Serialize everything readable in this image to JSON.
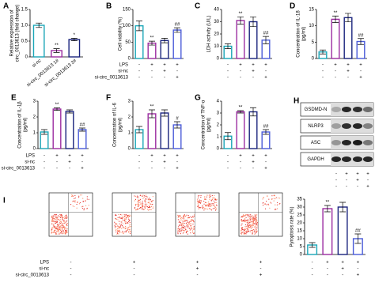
{
  "chart_data": [
    {
      "type": "bar",
      "label": "A",
      "ylabel": [
        "Relative expression of",
        "circ_0013613 (fold change)"
      ],
      "categories": [
        "si-nc",
        "si-circ_0013613 1#",
        "si-circ_0013613 2#"
      ],
      "values": [
        1.0,
        0.2,
        0.55
      ],
      "errors": [
        0.07,
        0.06,
        0.04
      ],
      "colors": [
        "#1aa6b7",
        "#9b2ca0",
        "#1a237e"
      ],
      "annotations": [
        null,
        "**",
        "*"
      ],
      "ylim": [
        0,
        1.5
      ],
      "yticks": [
        0,
        0.5,
        {
          "value": 1,
          "label": "1.0"
        },
        1.5
      ]
    },
    {
      "type": "bar",
      "label": "B",
      "ylabel": [
        "Cell viability (%)"
      ],
      "categories": [
        null,
        null,
        null,
        null
      ],
      "values": [
        100,
        47,
        55,
        87
      ],
      "errors": [
        15,
        6,
        7,
        7
      ],
      "colors": [
        "#1aa6b7",
        "#9b2ca0",
        "#1a237e",
        "#4a5bd8"
      ],
      "annotations": [
        null,
        "**",
        null,
        "##"
      ],
      "ylim": [
        0,
        150
      ],
      "yticks": [
        0,
        50,
        100,
        150
      ]
    },
    {
      "type": "bar",
      "label": "C",
      "ylabel": [
        "LDH activity (U/L)"
      ],
      "categories": [
        null,
        null,
        null,
        null
      ],
      "values": [
        10,
        31,
        30,
        15
      ],
      "errors": [
        2,
        3,
        4,
        3
      ],
      "colors": [
        "#1aa6b7",
        "#9b2ca0",
        "#1a237e",
        "#4a5bd8"
      ],
      "annotations": [
        null,
        "**",
        null,
        "##"
      ],
      "ylim": [
        0,
        40
      ],
      "yticks": [
        0,
        10,
        20,
        30,
        40
      ]
    },
    {
      "type": "bar",
      "label": "D",
      "ylabel": [
        "Concentration of IL-18",
        "(pg/ml)"
      ],
      "categories": [
        null,
        null,
        null,
        null
      ],
      "values": [
        2,
        12,
        12.5,
        5.2
      ],
      "errors": [
        0.6,
        1,
        1.3,
        0.9
      ],
      "colors": [
        "#1aa6b7",
        "#9b2ca0",
        "#1a237e",
        "#4a5bd8"
      ],
      "annotations": [
        null,
        "**",
        null,
        "##"
      ],
      "ylim": [
        0,
        15
      ],
      "yticks": [
        0,
        5,
        10,
        15
      ]
    },
    {
      "type": "bar",
      "label": "E",
      "ylabel": [
        "Concentration of IL-1β",
        "(pg/ml)"
      ],
      "categories": [
        null,
        null,
        null,
        null
      ],
      "values": [
        1.05,
        2.5,
        2.35,
        1.2
      ],
      "errors": [
        0.15,
        0.08,
        0.1,
        0.1
      ],
      "colors": [
        "#1aa6b7",
        "#9b2ca0",
        "#1a237e",
        "#4a5bd8"
      ],
      "annotations": [
        null,
        "**",
        null,
        "##"
      ],
      "ylim": [
        0,
        3
      ],
      "yticks": [
        0,
        1,
        2,
        3
      ]
    },
    {
      "type": "bar",
      "label": "F",
      "ylabel": [
        "Concentration of IL-6",
        "(pg/ml)"
      ],
      "categories": [
        null,
        null,
        null,
        null
      ],
      "values": [
        1.2,
        2.2,
        2.25,
        1.5
      ],
      "errors": [
        0.2,
        0.25,
        0.2,
        0.2
      ],
      "colors": [
        "#1aa6b7",
        "#9b2ca0",
        "#1a237e",
        "#4a5bd8"
      ],
      "annotations": [
        null,
        "**",
        null,
        "#"
      ],
      "ylim": [
        0,
        3
      ],
      "yticks": [
        0,
        1,
        2,
        3
      ]
    },
    {
      "type": "bar",
      "label": "G",
      "ylabel": [
        "Concentration of TNF-α",
        "(pg/ml)"
      ],
      "categories": [
        null,
        null,
        null,
        null
      ],
      "values": [
        1.05,
        3.1,
        3.1,
        1.4
      ],
      "errors": [
        0.3,
        0.1,
        0.35,
        0.2
      ],
      "colors": [
        "#1aa6b7",
        "#9b2ca0",
        "#1a237e",
        "#4a5bd8"
      ],
      "annotations": [
        null,
        "**",
        null,
        "##"
      ],
      "ylim": [
        0,
        4
      ],
      "yticks": [
        0,
        1,
        2,
        3,
        4
      ]
    },
    {
      "type": "bar",
      "label": null,
      "ylabel": [
        "Pyroptosis rate (%)"
      ],
      "categories": [
        null,
        null,
        null,
        null
      ],
      "values": [
        6,
        29,
        30,
        10
      ],
      "errors": [
        1.5,
        2,
        3,
        3
      ],
      "colors": [
        "#1aa6b7",
        "#9b2ca0",
        "#1a237e",
        "#4a5bd8"
      ],
      "annotations": [
        null,
        "**",
        null,
        "##"
      ],
      "ylim": [
        0,
        35
      ],
      "yticks": [
        0,
        5,
        10,
        15,
        20,
        25,
        30,
        35
      ]
    }
  ],
  "treatments": [
    {
      "name": "LPS",
      "signs": [
        "-",
        "+",
        "+",
        "+"
      ]
    },
    {
      "name": "si-nc",
      "signs": [
        "-",
        "-",
        "+",
        "-"
      ]
    },
    {
      "name": "si-circ_0013613",
      "signs": [
        "-",
        "-",
        "-",
        "+"
      ]
    }
  ],
  "blot": {
    "label": "H",
    "bands": [
      "GSDMD-N",
      "NLRP3",
      "ASC",
      "GAPDH"
    ]
  },
  "flow": {
    "label": "I"
  }
}
